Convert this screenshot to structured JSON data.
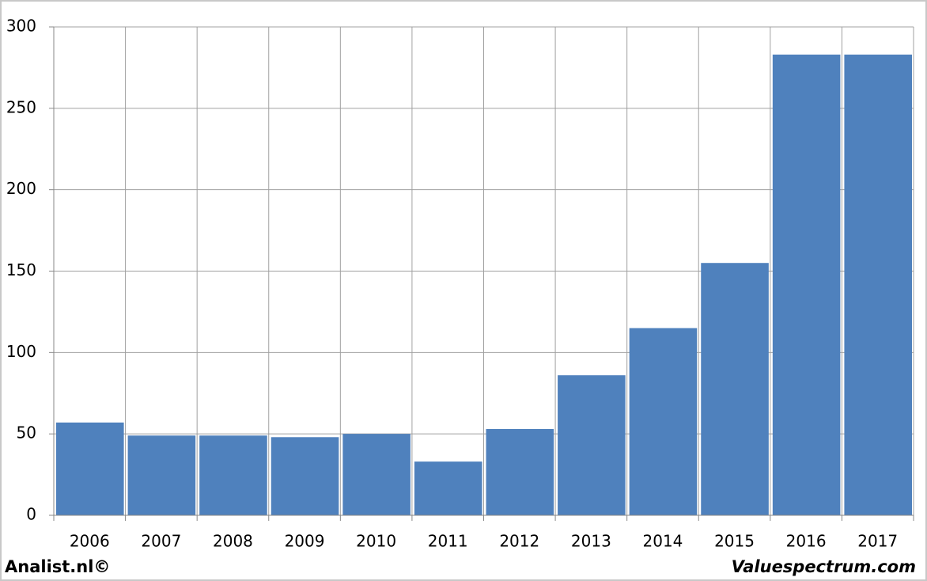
{
  "chart_data": {
    "type": "bar",
    "categories": [
      "2006",
      "2007",
      "2008",
      "2009",
      "2010",
      "2011",
      "2012",
      "2013",
      "2014",
      "2015",
      "2016",
      "2017"
    ],
    "values": [
      57,
      49,
      49,
      48,
      50,
      33,
      53,
      86,
      115,
      155,
      283,
      283
    ],
    "color": "#4f81bd",
    "ylim": [
      0,
      300
    ],
    "yticks": [
      0,
      50,
      100,
      150,
      200,
      250,
      300
    ],
    "grid": true,
    "annotations": [
      "Analist.nl©",
      "Valuespectrum.com"
    ]
  }
}
